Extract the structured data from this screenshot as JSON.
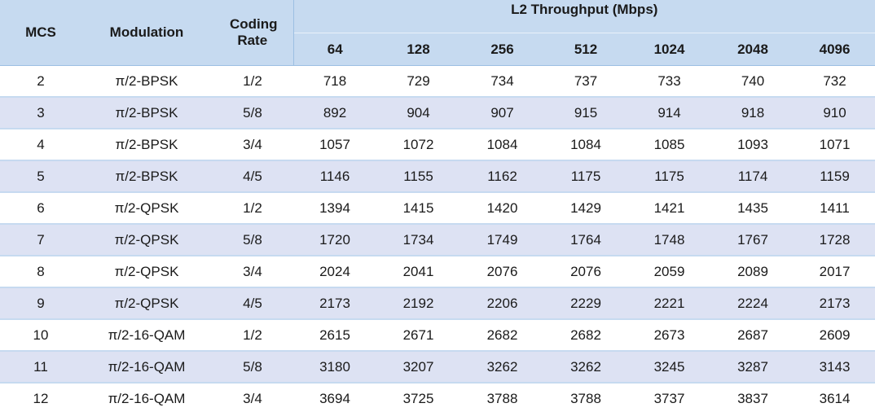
{
  "header": {
    "mcs": "MCS",
    "modulation": "Modulation",
    "coding_rate": "Coding Rate",
    "throughput": "L2 Throughput (Mbps)",
    "sizes": [
      64,
      128,
      256,
      512,
      1024,
      2048,
      4096
    ]
  },
  "table": {
    "rows": [
      [
        2,
        "π/2-BPSK",
        "1/2",
        718,
        729,
        734,
        737,
        733,
        740,
        732
      ],
      [
        3,
        "π/2-BPSK",
        "5/8",
        892,
        904,
        907,
        915,
        914,
        918,
        910
      ],
      [
        4,
        "π/2-BPSK",
        "3/4",
        1057,
        1072,
        1084,
        1084,
        1085,
        1093,
        1071
      ],
      [
        5,
        "π/2-BPSK",
        "4/5",
        1146,
        1155,
        1162,
        1175,
        1175,
        1174,
        1159
      ],
      [
        6,
        "π/2-QPSK",
        "1/2",
        1394,
        1415,
        1420,
        1429,
        1421,
        1435,
        1411
      ],
      [
        7,
        "π/2-QPSK",
        "5/8",
        1720,
        1734,
        1749,
        1764,
        1748,
        1767,
        1728
      ],
      [
        8,
        "π/2-QPSK",
        "3/4",
        2024,
        2041,
        2076,
        2076,
        2059,
        2089,
        2017
      ],
      [
        9,
        "π/2-QPSK",
        "4/5",
        2173,
        2192,
        2206,
        2229,
        2221,
        2224,
        2173
      ],
      [
        10,
        "π/2-16-QAM",
        "1/2",
        2615,
        2671,
        2682,
        2682,
        2673,
        2687,
        2609
      ],
      [
        11,
        "π/2-16-QAM",
        "5/8",
        3180,
        3207,
        3262,
        3262,
        3245,
        3287,
        3143
      ],
      [
        12,
        "π/2-16-QAM",
        "3/4",
        3694,
        3725,
        3788,
        3788,
        3737,
        3837,
        3614
      ]
    ]
  }
}
